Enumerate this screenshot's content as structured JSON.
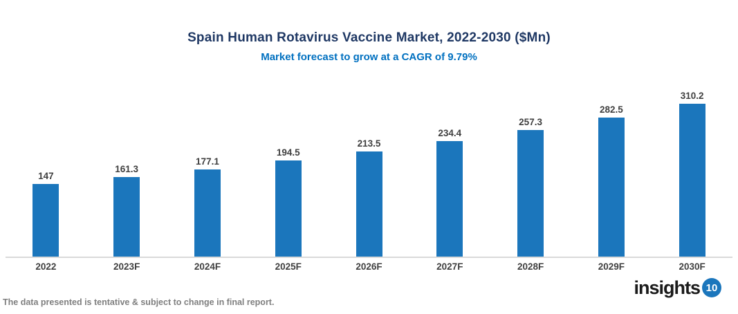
{
  "chart_data": {
    "type": "bar",
    "title": "Spain Human Rotavirus Vaccine Market, 2022-2030 ($Mn)",
    "subtitle": "Market forecast to grow at a CAGR of 9.79%",
    "categories": [
      "2022",
      "2023F",
      "2024F",
      "2025F",
      "2026F",
      "2027F",
      "2028F",
      "2029F",
      "2030F"
    ],
    "values": [
      147,
      161.3,
      177.1,
      194.5,
      213.5,
      234.4,
      257.3,
      282.5,
      310.2
    ],
    "value_labels": [
      "147",
      "161.3",
      "177.1",
      "194.5",
      "213.5",
      "234.4",
      "257.3",
      "282.5",
      "310.2"
    ],
    "xlabel": "",
    "ylabel": "",
    "ylim": [
      0,
      330
    ],
    "grid": false,
    "legend_position": "none",
    "bar_color": "#1b76bc"
  },
  "colors": {
    "title": "#1f3864",
    "subtitle": "#0070c0",
    "data_label": "#3f3f3f",
    "axis_line": "#d9d9d9",
    "footer": "#7f7f7f",
    "logo_badge": "#1b76bc"
  },
  "footer": {
    "note": "The data presented is tentative & subject to change in final report."
  },
  "logo": {
    "text": "insights",
    "badge": "10"
  }
}
